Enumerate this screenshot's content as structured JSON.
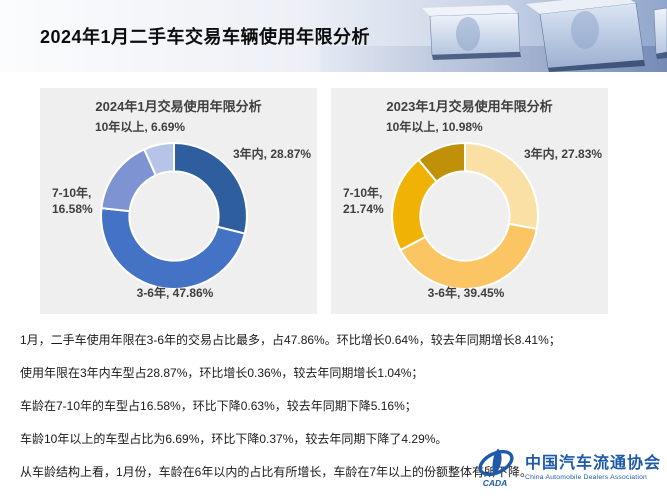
{
  "header": {
    "title": "2024年1月二手车交易车辆使用年限分析"
  },
  "chart_data": [
    {
      "type": "pie",
      "subtype": "donut",
      "title": "2024年1月交易使用年限分析",
      "categories": [
        "3年内",
        "3-6年",
        "7-10年",
        "10年以上"
      ],
      "values": [
        28.87,
        47.86,
        16.58,
        6.69
      ],
      "unit": "%",
      "colors": [
        "#2E5E9E",
        "#4472C4",
        "#7E93D1",
        "#B7C3E7"
      ],
      "slice_labels": [
        "3年内, 28.87%",
        "3-6年, 47.86%",
        "7-10年, 16.58%",
        "10年以上, 6.69%"
      ],
      "start_angle": 0,
      "direction": "clockwise",
      "legend_position": "none"
    },
    {
      "type": "pie",
      "subtype": "donut",
      "title": "2023年1月交易使用年限分析",
      "categories": [
        "3年内",
        "3-6年",
        "7-10年",
        "10年以上"
      ],
      "values": [
        27.83,
        39.45,
        21.74,
        10.98
      ],
      "unit": "%",
      "colors": [
        "#FBE0A6",
        "#FBC564",
        "#EFB205",
        "#C09009"
      ],
      "slice_labels": [
        "3年内, 27.83%",
        "3-6年, 39.45%",
        "7-10年, 21.74%",
        "10年以上, 10.98%"
      ],
      "start_angle": 0,
      "direction": "clockwise",
      "legend_position": "none"
    }
  ],
  "notes": [
    "1月，二手车使用年限在3-6年的交易占比最多，占47.86%。环比增长0.64%，较去年同期增长8.41%；",
    "使用年限在3年内车型占28.87%，环比增长0.36%，较去年同期增长1.04%；",
    "车龄在7-10年的车型占16.58%，环比下降0.63%，较去年同期下降5.16%；",
    "车龄10年以上的车型占比为6.69%，环比下降0.37%，较去年同期下降了4.29%。",
    "从车龄结构上看，1月份，车龄在6年以内的占比有所增长，车龄在7年以上的份额整体有所下降。"
  ],
  "footer": {
    "logo_text": "CADA",
    "org_name_cn": "中国汽车流通协会",
    "org_name_en": "China Automobile Dealers Association"
  },
  "colors": {
    "panel_bg": "#EFEFEF",
    "text_dark": "#3F3F3F",
    "logo_blue": "#1E5AA9",
    "header_right_blue": "#96ABCE"
  }
}
